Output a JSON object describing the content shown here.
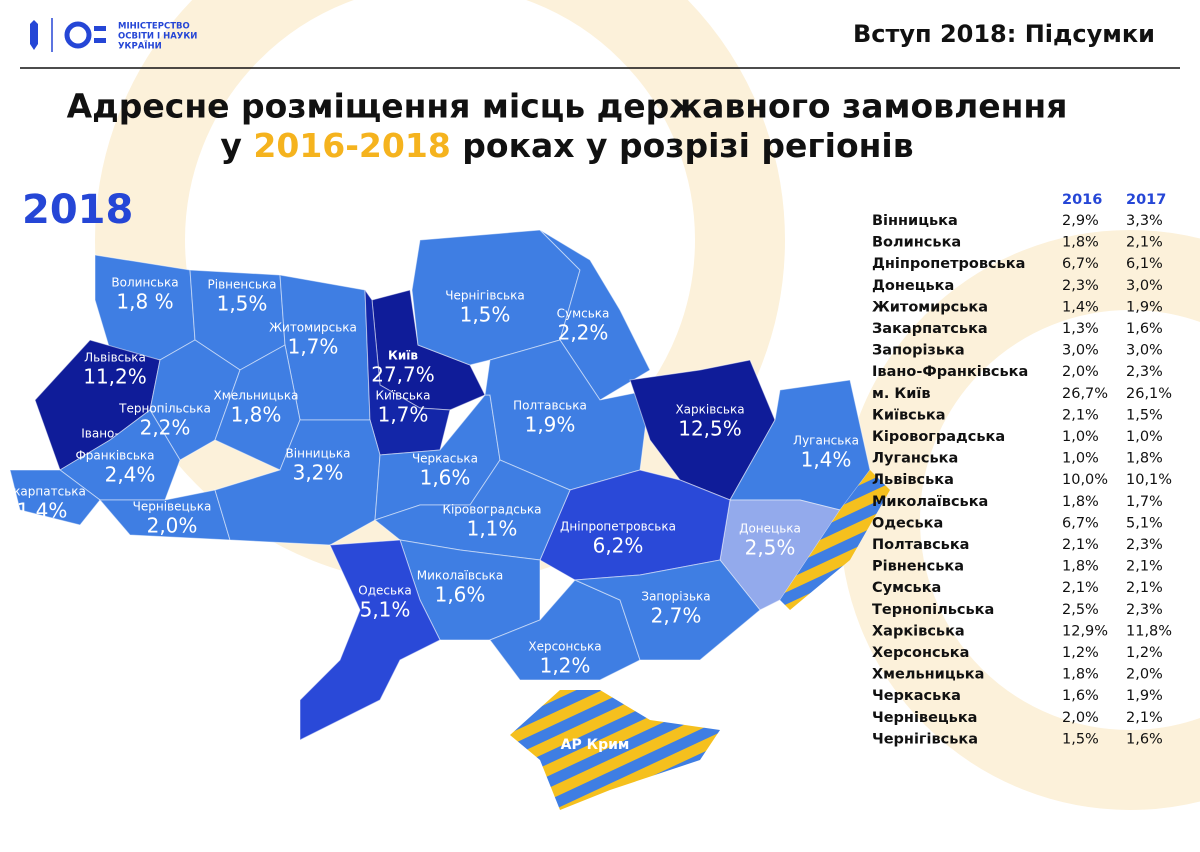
{
  "header": {
    "logo_lines": [
      "МІНІСТЕРСТВО",
      "ОСВІТИ І НАУКИ",
      "УКРАЇНИ"
    ],
    "section": "Вступ 2018: Підсумки"
  },
  "title": {
    "line1": "Адресне розміщення місць державного замовлення",
    "line2_prefix": "у",
    "line2_highlight": "2016-2018",
    "line2_suffix": "роках у розрізі регіонів"
  },
  "map": {
    "year": "2018",
    "regions": [
      {
        "name_lines": [
          "Волинська"
        ],
        "value": "1,8 %",
        "color": "#3f7ee3"
      },
      {
        "name_lines": [
          "Рівненська"
        ],
        "value": "1,5%",
        "color": "#3f7ee3"
      },
      {
        "name_lines": [
          "Житомирська"
        ],
        "value": "1,7%",
        "color": "#3f7ee3"
      },
      {
        "name_lines": [
          "Київ"
        ],
        "value": "27,7%",
        "color": "#0f1c99"
      },
      {
        "name_lines": [
          "Київська"
        ],
        "value": "1,7%",
        "color": "#1326a8"
      },
      {
        "name_lines": [
          "Чернігівська"
        ],
        "value": "1,5%",
        "color": "#3f7ee3"
      },
      {
        "name_lines": [
          "Сумська"
        ],
        "value": "2,2%",
        "color": "#3f7ee3"
      },
      {
        "name_lines": [
          "Львівська"
        ],
        "value": "11,2%",
        "color": "#0f1c99"
      },
      {
        "name_lines": [
          "Тернопільська"
        ],
        "value": "2,2%",
        "color": "#3f7ee3"
      },
      {
        "name_lines": [
          "Хмельницька"
        ],
        "value": "1,8%",
        "color": "#3f7ee3"
      },
      {
        "name_lines": [
          "Івано-",
          "Франківська"
        ],
        "value": "2,4%",
        "color": "#3f7ee3"
      },
      {
        "name_lines": [
          "Закарпатська"
        ],
        "value": "1,4%",
        "color": "#3f7ee3"
      },
      {
        "name_lines": [
          "Чернівецька"
        ],
        "value": "2,0%",
        "color": "#3f7ee3"
      },
      {
        "name_lines": [
          "Вінницька"
        ],
        "value": "3,2%",
        "color": "#3f7ee3"
      },
      {
        "name_lines": [
          "Черкаська"
        ],
        "value": "1,6%",
        "color": "#3f7ee3"
      },
      {
        "name_lines": [
          "Полтавська"
        ],
        "value": "1,9%",
        "color": "#3f7ee3"
      },
      {
        "name_lines": [
          "Харківська"
        ],
        "value": "12,5%",
        "color": "#0f1c99"
      },
      {
        "name_lines": [
          "Луганська"
        ],
        "value": "1,4%",
        "color": "#3f7ee3"
      },
      {
        "name_lines": [
          "Донецька"
        ],
        "value": "2,5%",
        "color": "#93aaec"
      },
      {
        "name_lines": [
          "Дніпропетровська"
        ],
        "value": "6,2%",
        "color": "#2a49d8"
      },
      {
        "name_lines": [
          "Кіровоградська"
        ],
        "value": "1,1%",
        "color": "#3f7ee3"
      },
      {
        "name_lines": [
          "Миколаївська"
        ],
        "value": "1,6%",
        "color": "#3f7ee3"
      },
      {
        "name_lines": [
          "Одеська"
        ],
        "value": "5,1%",
        "color": "#2a49d8"
      },
      {
        "name_lines": [
          "Херсонська"
        ],
        "value": "1,2%",
        "color": "#3f7ee3"
      },
      {
        "name_lines": [
          "Запорізька"
        ],
        "value": "2,7%",
        "color": "#3f7ee3"
      }
    ],
    "crimea": "АР Крим"
  },
  "table": {
    "columns": [
      "2016",
      "2017"
    ],
    "rows": [
      [
        "Вінницька",
        "2,9%",
        "3,3%"
      ],
      [
        "Волинська",
        "1,8%",
        "2,1%"
      ],
      [
        "Дніпропетровська",
        "6,7%",
        "6,1%"
      ],
      [
        "Донецька",
        "2,3%",
        "3,0%"
      ],
      [
        "Житомирська",
        "1,4%",
        "1,9%"
      ],
      [
        "Закарпатська",
        "1,3%",
        "1,6%"
      ],
      [
        "Запорізька",
        "3,0%",
        "3,0%"
      ],
      [
        "Івано-Франківська",
        "2,0%",
        "2,3%"
      ],
      [
        "м. Київ",
        "26,7%",
        "26,1%"
      ],
      [
        "Київська",
        "2,1%",
        "1,5%"
      ],
      [
        "Кіровоградська",
        "1,0%",
        "1,0%"
      ],
      [
        "Луганська",
        "1,0%",
        "1,8%"
      ],
      [
        "Львівська",
        "10,0%",
        "10,1%"
      ],
      [
        "Миколаївська",
        "1,8%",
        "1,7%"
      ],
      [
        "Одеська",
        "6,7%",
        "5,1%"
      ],
      [
        "Полтавська",
        "2,1%",
        "2,3%"
      ],
      [
        "Рівненська",
        "1,8%",
        "2,1%"
      ],
      [
        "Сумська",
        "2,1%",
        "2,1%"
      ],
      [
        "Тернопільська",
        "2,5%",
        "2,3%"
      ],
      [
        "Харківська",
        "12,9%",
        "11,8%"
      ],
      [
        "Херсонська",
        "1,2%",
        "1,2%"
      ],
      [
        "Хмельницька",
        "1,8%",
        "2,0%"
      ],
      [
        "Черкаська",
        "1,6%",
        "1,9%"
      ],
      [
        "Чернівецька",
        "2,0%",
        "2,1%"
      ],
      [
        "Чернігівська",
        "1,5%",
        "1,6%"
      ]
    ]
  }
}
